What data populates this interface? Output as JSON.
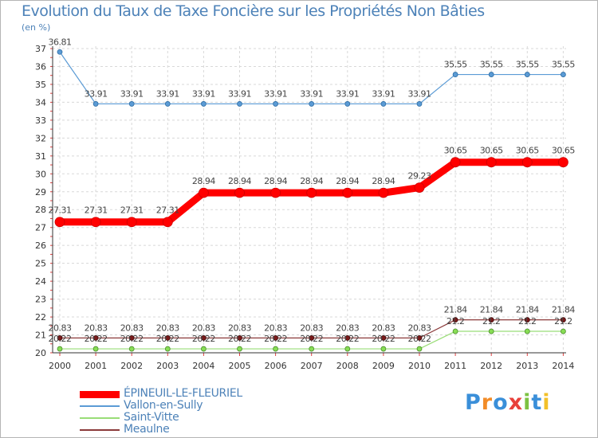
{
  "chart_data": {
    "type": "line",
    "title": "Evolution du Taux de Taxe Foncière sur les Propriétés Non Bâties",
    "ylabel": "(en %)",
    "xlabel": "",
    "x": [
      "2000",
      "2001",
      "2002",
      "2003",
      "2004",
      "2005",
      "2006",
      "2007",
      "2008",
      "2009",
      "2010",
      "2011",
      "2012",
      "2013",
      "2014"
    ],
    "ylim": [
      20,
      37
    ],
    "yticks": [
      20,
      21,
      22,
      23,
      24,
      25,
      26,
      27,
      28,
      29,
      30,
      31,
      32,
      33,
      34,
      35,
      36,
      37
    ],
    "series": [
      {
        "name": "ÉPINEUIL-LE-FLEURIEL",
        "color": "#ff0000",
        "values": [
          27.31,
          27.31,
          27.31,
          27.31,
          28.94,
          28.94,
          28.94,
          28.94,
          28.94,
          28.94,
          29.23,
          30.65,
          30.65,
          30.65,
          30.65
        ],
        "labels": [
          "27.31",
          "27.31",
          "27.31",
          "27.31",
          "28.94",
          "28.94",
          "28.94",
          "28.94",
          "28.94",
          "28.94",
          "29.23",
          "30.65",
          "30.65",
          "30.65",
          "30.65"
        ]
      },
      {
        "name": "Vallon-en-Sully",
        "color": "#5b9bd5",
        "values": [
          36.81,
          33.91,
          33.91,
          33.91,
          33.91,
          33.91,
          33.91,
          33.91,
          33.91,
          33.91,
          33.91,
          35.55,
          35.55,
          35.55,
          35.55
        ],
        "labels": [
          "36.81",
          "33.91",
          "33.91",
          "33.91",
          "33.91",
          "33.91",
          "33.91",
          "33.91",
          "33.91",
          "33.91",
          "33.91",
          "35.55",
          "35.55",
          "35.55",
          "35.55"
        ]
      },
      {
        "name": "Saint-Vitte",
        "color": "#99dd77",
        "values": [
          20.22,
          20.22,
          20.22,
          20.22,
          20.22,
          20.22,
          20.22,
          20.22,
          20.22,
          20.22,
          20.22,
          21.2,
          21.2,
          21.2,
          21.2
        ],
        "labels": [
          "20.22",
          "20.22",
          "20.22",
          "20.22",
          "20.22",
          "20.22",
          "20.22",
          "20.22",
          "20.22",
          "20.22",
          "20.22",
          "21.2",
          "21.2",
          "21.2",
          "21.2"
        ]
      },
      {
        "name": "Meaulne",
        "color": "#8b3a3a",
        "values": [
          20.83,
          20.83,
          20.83,
          20.83,
          20.83,
          20.83,
          20.83,
          20.83,
          20.83,
          20.83,
          20.83,
          21.84,
          21.84,
          21.84,
          21.84
        ],
        "labels": [
          "20.83",
          "20.83",
          "20.83",
          "20.83",
          "20.83",
          "20.83",
          "20.83",
          "20.83",
          "20.83",
          "20.83",
          "20.83",
          "21.84",
          "21.84",
          "21.84",
          "21.84"
        ]
      }
    ],
    "legend": "bottom-left"
  },
  "logo": {
    "text": "Proxiti"
  }
}
